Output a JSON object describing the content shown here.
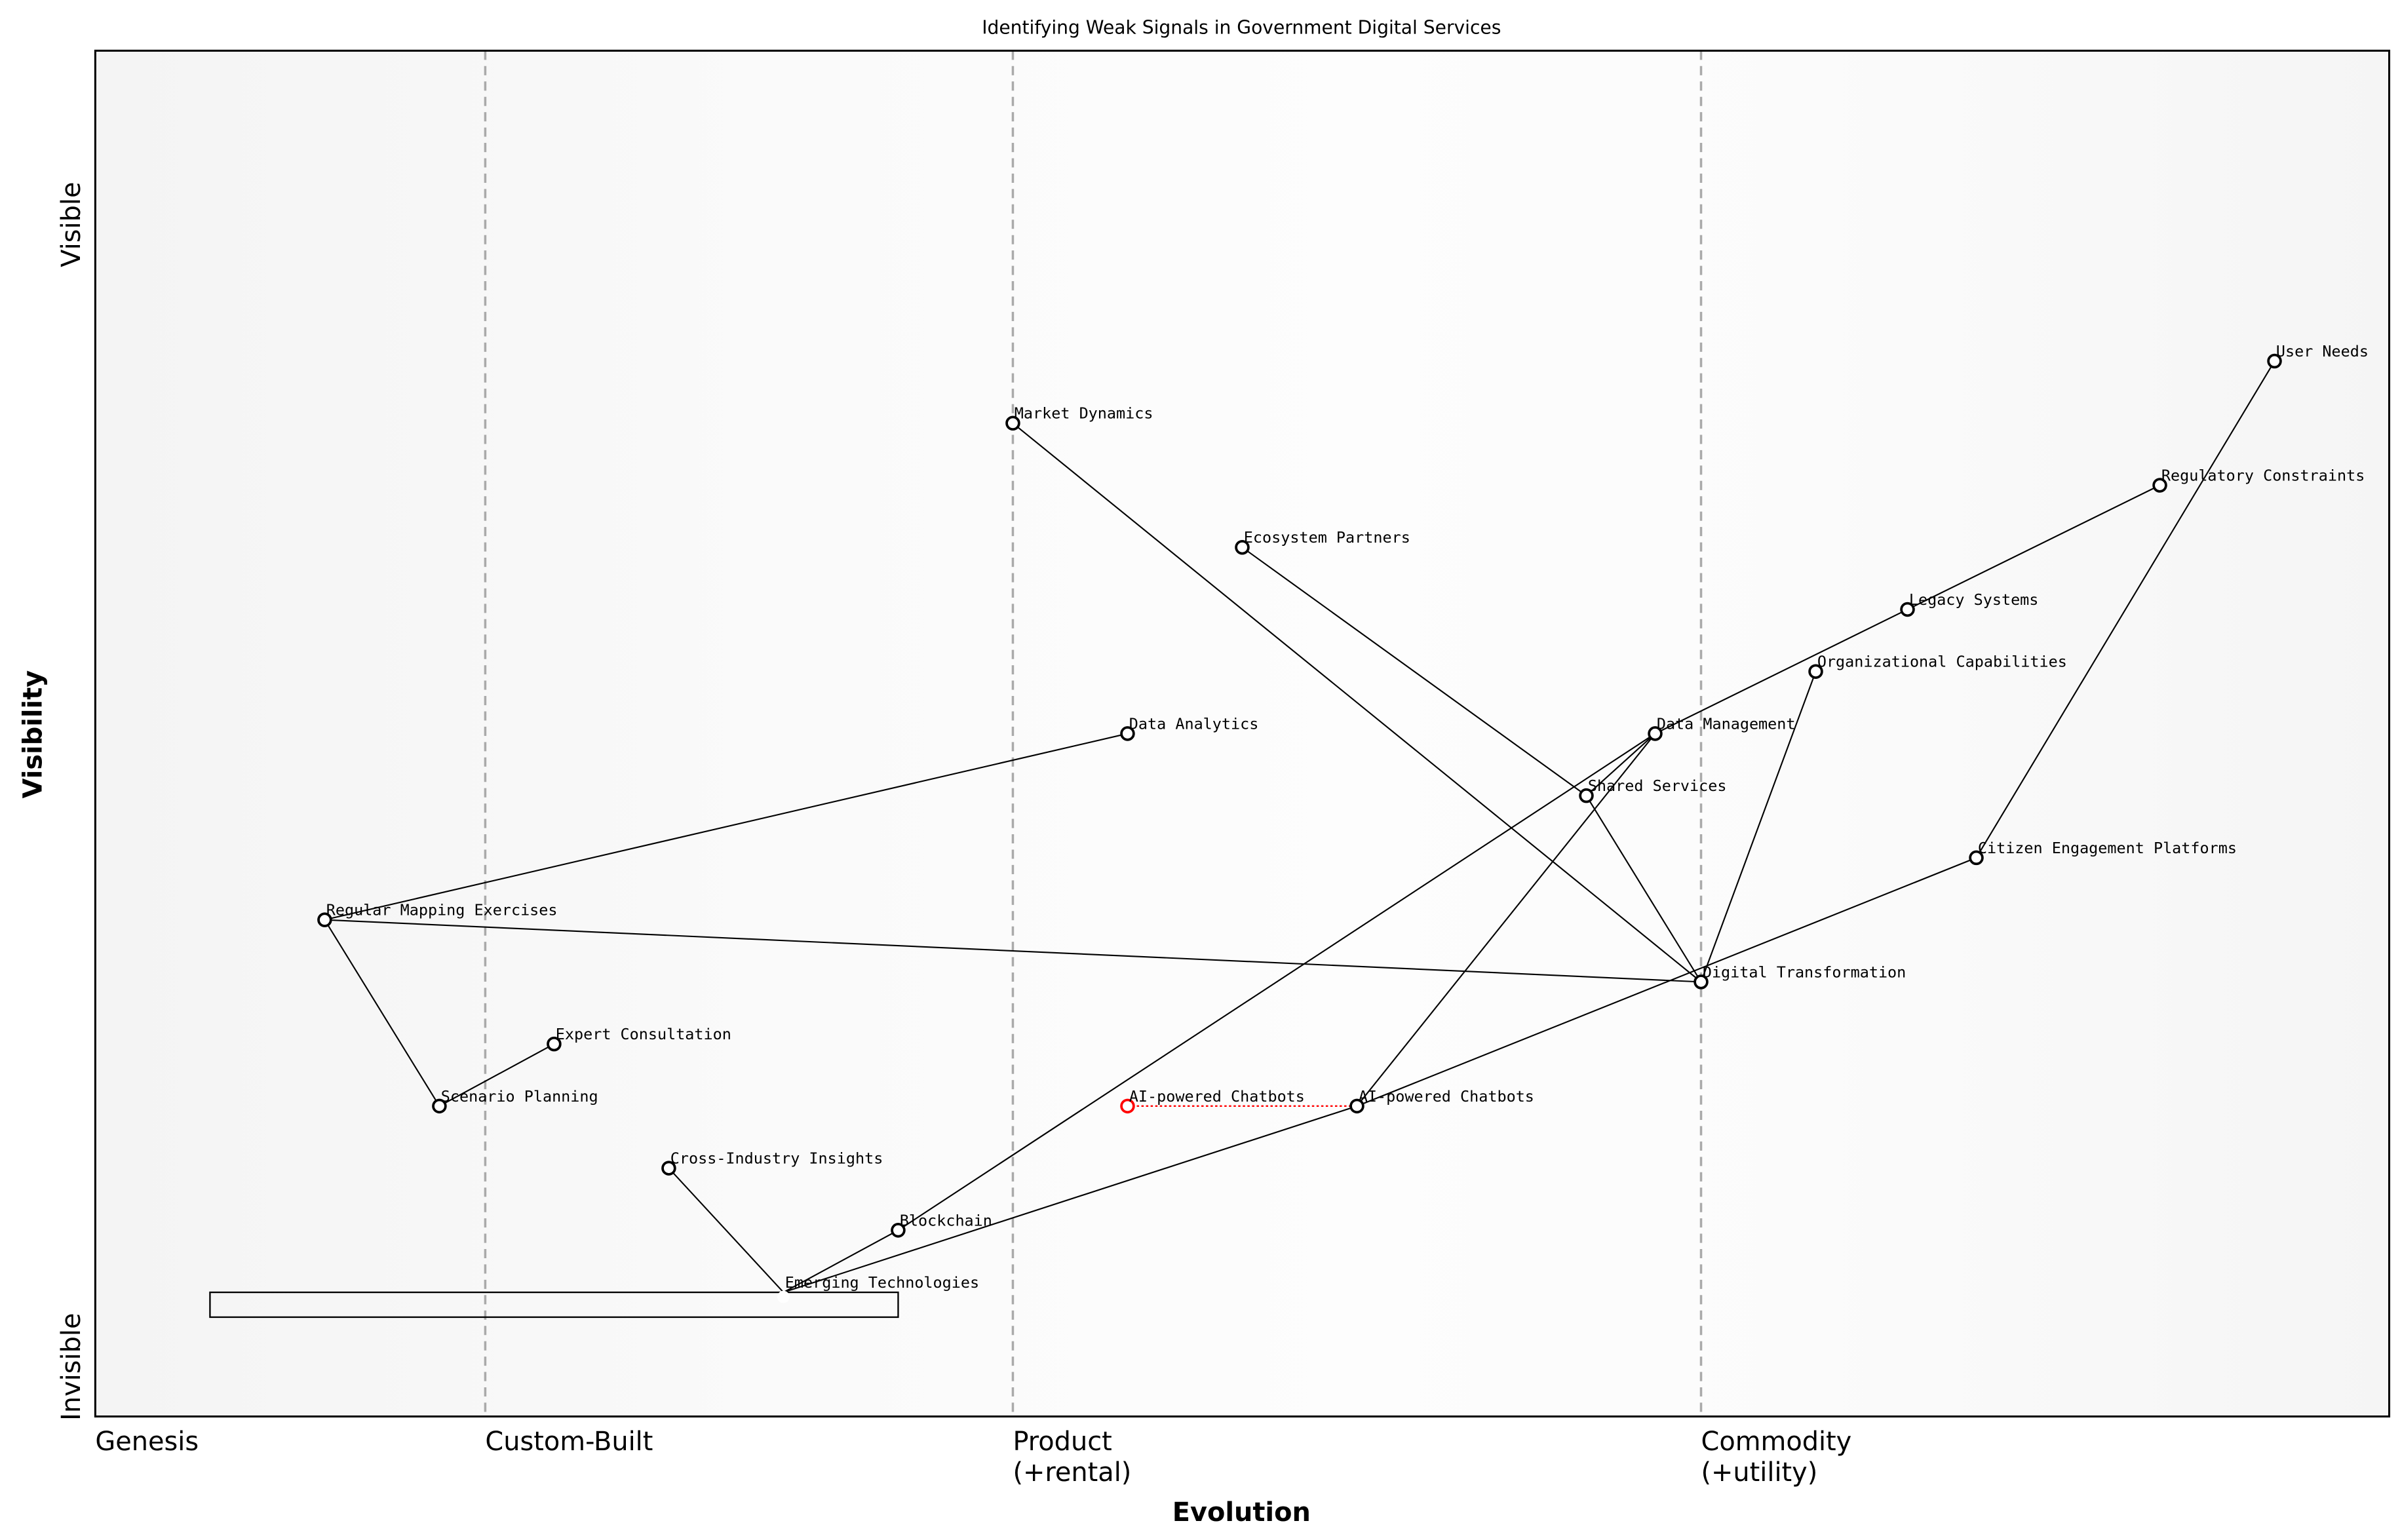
{
  "chart_data": {
    "type": "wardley-map",
    "title": "Identifying Weak Signals in Government Digital Services",
    "xlabel": "Evolution",
    "ylabel": "Visibility",
    "xlim": [
      0,
      1
    ],
    "ylim": [
      0,
      1.1
    ],
    "y_tick_labels": [
      {
        "label": "Visible",
        "value": 0.96
      },
      {
        "label": "Invisible",
        "value": 0.04
      }
    ],
    "x_stages": [
      {
        "label": "Genesis",
        "value": 0.0
      },
      {
        "label": "Custom-Built",
        "value": 0.17
      },
      {
        "label": "Product\n(+rental)",
        "value": 0.4
      },
      {
        "label": "Commodity\n(+utility)",
        "value": 0.7
      }
    ],
    "components": [
      {
        "name": "User Needs",
        "evolution": 0.95,
        "visibility": 0.85
      },
      {
        "name": "Market Dynamics",
        "evolution": 0.4,
        "visibility": 0.8
      },
      {
        "name": "Regulatory Constraints",
        "evolution": 0.9,
        "visibility": 0.75
      },
      {
        "name": "Ecosystem Partners",
        "evolution": 0.5,
        "visibility": 0.7
      },
      {
        "name": "Legacy Systems",
        "evolution": 0.79,
        "visibility": 0.65
      },
      {
        "name": "Organizational Capabilities",
        "evolution": 0.75,
        "visibility": 0.6
      },
      {
        "name": "Data Analytics",
        "evolution": 0.45,
        "visibility": 0.55
      },
      {
        "name": "Data Management",
        "evolution": 0.68,
        "visibility": 0.55
      },
      {
        "name": "Shared Services",
        "evolution": 0.65,
        "visibility": 0.5
      },
      {
        "name": "Citizen Engagement Platforms",
        "evolution": 0.82,
        "visibility": 0.45
      },
      {
        "name": "Regular Mapping Exercises",
        "evolution": 0.1,
        "visibility": 0.4
      },
      {
        "name": "Digital Transformation",
        "evolution": 0.7,
        "visibility": 0.35
      },
      {
        "name": "Expert Consultation",
        "evolution": 0.2,
        "visibility": 0.3
      },
      {
        "name": "Scenario Planning",
        "evolution": 0.15,
        "visibility": 0.25
      },
      {
        "name": "AI-powered Chatbots",
        "evolution": 0.55,
        "visibility": 0.25
      },
      {
        "name": "Cross-Industry Insights",
        "evolution": 0.25,
        "visibility": 0.2
      },
      {
        "name": "Blockchain",
        "evolution": 0.35,
        "visibility": 0.15
      },
      {
        "name": "Emerging Technologies",
        "evolution": 0.3,
        "visibility": 0.1,
        "hidden_marker": true
      }
    ],
    "evolving_component": {
      "name": "AI-powered Chatbots",
      "from_evolution": 0.45,
      "to_evolution": 0.55,
      "visibility": 0.25,
      "color": "#ff0000"
    },
    "links": [
      [
        "User Needs",
        "Citizen Engagement Platforms"
      ],
      [
        "Regulatory Constraints",
        "Legacy Systems"
      ],
      [
        "Legacy Systems",
        "Data Management"
      ],
      [
        "Data Management",
        "Blockchain"
      ],
      [
        "Data Management",
        "AI-powered Chatbots"
      ],
      [
        "Data Management",
        "Shared Services"
      ],
      [
        "Ecosystem Partners",
        "Shared Services"
      ],
      [
        "Shared Services",
        "Digital Transformation"
      ],
      [
        "Market Dynamics",
        "Digital Transformation"
      ],
      [
        "Organizational Capabilities",
        "Digital Transformation"
      ],
      [
        "Citizen Engagement Platforms",
        "AI-powered Chatbots"
      ],
      [
        "AI-powered Chatbots",
        "Emerging Technologies"
      ],
      [
        "Blockchain",
        "Emerging Technologies"
      ],
      [
        "Cross-Industry Insights",
        "Emerging Technologies"
      ],
      [
        "Data Analytics",
        "Regular Mapping Exercises"
      ],
      [
        "Regular Mapping Exercises",
        "Digital Transformation"
      ],
      [
        "Regular Mapping Exercises",
        "Scenario Planning"
      ],
      [
        "Scenario Planning",
        "Expert Consultation"
      ]
    ],
    "inertia_box": {
      "evolution_from": 0.05,
      "evolution_to": 0.35,
      "visibility_from": 0.08,
      "visibility_to": 0.1
    },
    "colors": {
      "node_edge": "#000000",
      "node_fill": "#ffffff",
      "link": "#000000",
      "stage_line": "#aaaaaa",
      "evolve": "#ff0000"
    }
  }
}
